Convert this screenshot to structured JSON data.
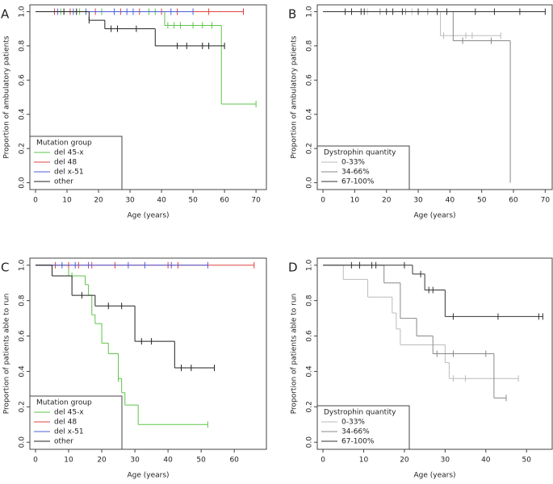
{
  "chart_data": [
    {
      "type": "step",
      "panel": "A",
      "xlabel": "Age (years)",
      "ylabel": "Proportion of ambulatory patients",
      "xlim": [
        -1.8,
        73.3
      ],
      "ylim": [
        -0.04,
        1.04
      ],
      "xticks": [
        0,
        10,
        20,
        30,
        40,
        50,
        60,
        70
      ],
      "yticks": [
        {
          "value": 0,
          "label": "0.0"
        },
        {
          "value": 0.2,
          "label": "0.2"
        },
        {
          "value": 0.4,
          "label": "0.4"
        },
        {
          "value": 0.6,
          "label": "0.6"
        },
        {
          "value": 0.8,
          "label": "0.8"
        },
        {
          "value": 1,
          "label": "1.0"
        }
      ],
      "legend_title": "Mutation group",
      "legend": "bottom-left",
      "series": [
        {
          "name": "del 45-x",
          "color": "#5ec34a",
          "x": [
            0,
            41,
            59,
            70
          ],
          "values": [
            1,
            0.92,
            0.46,
            0.46
          ],
          "censored": [
            8,
            14,
            21,
            36,
            38,
            42,
            44,
            46,
            50,
            53,
            56,
            70
          ]
        },
        {
          "name": "del 48",
          "color": "#e04040",
          "x": [
            0,
            66
          ],
          "values": [
            1,
            1
          ],
          "censored": [
            6,
            11,
            19,
            27,
            33,
            40,
            45,
            55,
            66
          ]
        },
        {
          "name": "del x-51",
          "color": "#4c5fd6",
          "x": [
            0,
            50
          ],
          "values": [
            1,
            1
          ],
          "censored": [
            7,
            12,
            16,
            25,
            29,
            31,
            43,
            50
          ]
        },
        {
          "name": "other",
          "color": "#222222",
          "x": [
            0,
            17,
            22,
            38,
            60
          ],
          "values": [
            1,
            0.95,
            0.9,
            0.8,
            0.8
          ],
          "censored": [
            9,
            13,
            17,
            24,
            26,
            32,
            45,
            48,
            53,
            55,
            60
          ]
        }
      ]
    },
    {
      "type": "step",
      "panel": "B",
      "xlabel": "Age (years)",
      "ylabel": "Proportion of ambulatory patients",
      "xlim": [
        -1.8,
        72.2
      ],
      "ylim": [
        -0.04,
        1.04
      ],
      "xticks": [
        0,
        10,
        20,
        30,
        40,
        50,
        60,
        70
      ],
      "yticks": [
        {
          "value": 0,
          "label": "0.0"
        },
        {
          "value": 0.2,
          "label": "0.2"
        },
        {
          "value": 0.4,
          "label": "0.4"
        },
        {
          "value": 0.6,
          "label": "0.6"
        },
        {
          "value": 0.8,
          "label": "0.8"
        },
        {
          "value": 1,
          "label": "1.0"
        }
      ],
      "legend_title": "Dystrophin quantity",
      "legend": "bottom-left",
      "series": [
        {
          "name": "0-33%",
          "color": "#bbbbbb",
          "x": [
            0,
            37,
            56
          ],
          "values": [
            1,
            0.86,
            0.86
          ],
          "censored": [
            14,
            28,
            38,
            45,
            47,
            56
          ]
        },
        {
          "name": "34-66%",
          "color": "#888888",
          "x": [
            0,
            41,
            59,
            59
          ],
          "values": [
            1,
            0.83,
            0,
            0
          ],
          "censored": [
            18,
            26,
            33,
            44,
            53
          ]
        },
        {
          "name": "67-100%",
          "color": "#333333",
          "x": [
            0,
            70
          ],
          "values": [
            1,
            1
          ],
          "censored": [
            7,
            9,
            12,
            13,
            20,
            22,
            25,
            30,
            36,
            39,
            48,
            54,
            62,
            70
          ]
        }
      ]
    },
    {
      "type": "step",
      "panel": "C",
      "xlabel": "Age (years)",
      "ylabel": "Proportion of patients able to run",
      "xlim": [
        -1.7,
        69.7
      ],
      "ylim": [
        -0.04,
        1.04
      ],
      "xticks": [
        0,
        10,
        20,
        30,
        40,
        50,
        60
      ],
      "yticks": [
        {
          "value": 0,
          "label": "0.0"
        },
        {
          "value": 0.2,
          "label": "0.2"
        },
        {
          "value": 0.4,
          "label": "0.4"
        },
        {
          "value": 0.6,
          "label": "0.6"
        },
        {
          "value": 0.8,
          "label": "0.8"
        },
        {
          "value": 1,
          "label": "1.0"
        }
      ],
      "legend_title": "Mutation group",
      "legend": "bottom-left",
      "series": [
        {
          "name": "del 45-x",
          "color": "#5ec34a",
          "x": [
            0,
            10,
            15,
            16,
            17,
            18,
            20,
            22,
            25,
            26,
            27,
            31,
            52
          ],
          "values": [
            1,
            0.94,
            0.89,
            0.83,
            0.72,
            0.67,
            0.56,
            0.5,
            0.36,
            0.28,
            0.21,
            0.1,
            0.1
          ],
          "censored": [
            11,
            25,
            52
          ]
        },
        {
          "name": "del 48",
          "color": "#e04040",
          "x": [
            0,
            66
          ],
          "values": [
            1,
            1
          ],
          "censored": [
            6,
            10,
            13,
            17,
            24,
            40,
            43,
            66
          ]
        },
        {
          "name": "del x-51",
          "color": "#4c5fd6",
          "x": [
            0,
            52
          ],
          "values": [
            1,
            1
          ],
          "censored": [
            8,
            12,
            16,
            28,
            33,
            41,
            52
          ]
        },
        {
          "name": "other",
          "color": "#222222",
          "x": [
            0,
            5,
            11,
            18,
            30,
            42,
            54
          ],
          "values": [
            1,
            0.94,
            0.83,
            0.77,
            0.57,
            0.42,
            0.42
          ],
          "censored": [
            14,
            22,
            26,
            32,
            35,
            44,
            47,
            54
          ]
        }
      ]
    },
    {
      "type": "step",
      "panel": "D",
      "xlabel": "Age (years)",
      "ylabel": "Proportion of patients able to run",
      "xlim": [
        -1.4,
        56.3
      ],
      "ylim": [
        -0.04,
        1.04
      ],
      "xticks": [
        0,
        10,
        20,
        30,
        40,
        50
      ],
      "yticks": [
        {
          "value": 0,
          "label": "0.0"
        },
        {
          "value": 0.2,
          "label": "0.2"
        },
        {
          "value": 0.4,
          "label": "0.4"
        },
        {
          "value": 0.6,
          "label": "0.6"
        },
        {
          "value": 0.8,
          "label": "0.8"
        },
        {
          "value": 1,
          "label": "1.0"
        }
      ],
      "legend_title": "Dystrophin quantity",
      "legend": "bottom-left",
      "series": [
        {
          "name": "0-33%",
          "color": "#bbbbbb",
          "x": [
            0,
            5,
            11,
            17,
            18,
            19,
            30,
            31,
            48
          ],
          "values": [
            1,
            0.92,
            0.82,
            0.73,
            0.64,
            0.55,
            0.45,
            0.36,
            0.36
          ],
          "censored": [
            32,
            35,
            48
          ]
        },
        {
          "name": "34-66%",
          "color": "#888888",
          "x": [
            0,
            15,
            19,
            23,
            27,
            42,
            45
          ],
          "values": [
            1,
            0.9,
            0.7,
            0.6,
            0.5,
            0.25,
            0.25
          ],
          "censored": [
            9,
            28,
            32,
            40,
            45
          ]
        },
        {
          "name": "67-100%",
          "color": "#333333",
          "x": [
            0,
            22,
            25,
            30,
            54
          ],
          "values": [
            1,
            0.95,
            0.86,
            0.71,
            0.71
          ],
          "censored": [
            7,
            9,
            12,
            13,
            20,
            24,
            26,
            27,
            32,
            43,
            53,
            54
          ]
        }
      ]
    }
  ]
}
